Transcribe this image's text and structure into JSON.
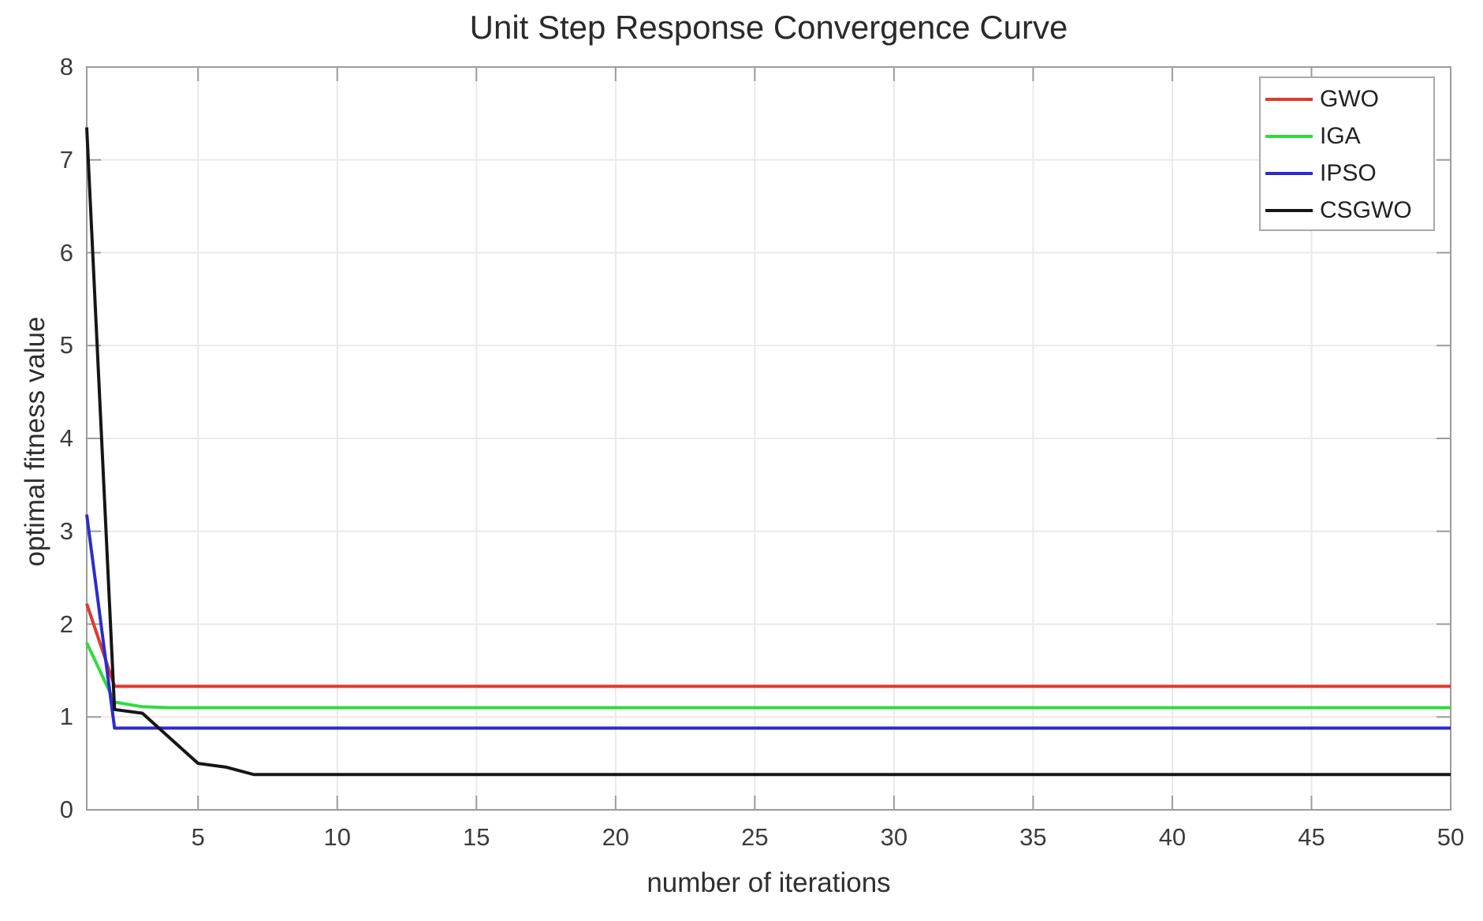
{
  "colors": {
    "background": "#ffffff",
    "grid": "#eaeaea",
    "axis_box": "#9c9c9c",
    "tick": "#9c9c9c",
    "tick_label": "#3c3c3c",
    "title": "#2a2a2a",
    "legend_border": "#a9a9a9"
  },
  "chart_data": {
    "type": "line",
    "title": "Unit Step Response Convergence Curve",
    "xlabel": "number of iterations",
    "ylabel": "optimal fitness value",
    "xlim": [
      1,
      50
    ],
    "ylim": [
      0,
      8
    ],
    "x_ticks": [
      5,
      10,
      15,
      20,
      25,
      30,
      35,
      40,
      45,
      50
    ],
    "y_ticks": [
      0,
      1,
      2,
      3,
      4,
      5,
      6,
      7,
      8
    ],
    "grid": true,
    "legend_position": "top-right",
    "x": [
      1,
      2,
      3,
      4,
      5,
      6,
      7,
      8,
      9,
      10,
      11,
      12,
      13,
      14,
      15,
      16,
      17,
      18,
      19,
      20,
      21,
      22,
      23,
      24,
      25,
      26,
      27,
      28,
      29,
      30,
      31,
      32,
      33,
      34,
      35,
      36,
      37,
      38,
      39,
      40,
      41,
      42,
      43,
      44,
      45,
      46,
      47,
      48,
      49,
      50
    ],
    "series": [
      {
        "name": "GWO",
        "color": "#e0392e",
        "values": [
          2.22,
          1.33,
          1.33,
          1.33,
          1.33,
          1.33,
          1.33,
          1.33,
          1.33,
          1.33,
          1.33,
          1.33,
          1.33,
          1.33,
          1.33,
          1.33,
          1.33,
          1.33,
          1.33,
          1.33,
          1.33,
          1.33,
          1.33,
          1.33,
          1.33,
          1.33,
          1.33,
          1.33,
          1.33,
          1.33,
          1.33,
          1.33,
          1.33,
          1.33,
          1.33,
          1.33,
          1.33,
          1.33,
          1.33,
          1.33,
          1.33,
          1.33,
          1.33,
          1.33,
          1.33,
          1.33,
          1.33,
          1.33,
          1.33,
          1.33
        ]
      },
      {
        "name": "IGA",
        "color": "#2edc3c",
        "values": [
          1.8,
          1.16,
          1.11,
          1.1,
          1.1,
          1.1,
          1.1,
          1.1,
          1.1,
          1.1,
          1.1,
          1.1,
          1.1,
          1.1,
          1.1,
          1.1,
          1.1,
          1.1,
          1.1,
          1.1,
          1.1,
          1.1,
          1.1,
          1.1,
          1.1,
          1.1,
          1.1,
          1.1,
          1.1,
          1.1,
          1.1,
          1.1,
          1.1,
          1.1,
          1.1,
          1.1,
          1.1,
          1.1,
          1.1,
          1.1,
          1.1,
          1.1,
          1.1,
          1.1,
          1.1,
          1.1,
          1.1,
          1.1,
          1.1,
          1.1
        ]
      },
      {
        "name": "IPSO",
        "color": "#2c2ccc",
        "values": [
          3.18,
          0.88,
          0.88,
          0.88,
          0.88,
          0.88,
          0.88,
          0.88,
          0.88,
          0.88,
          0.88,
          0.88,
          0.88,
          0.88,
          0.88,
          0.88,
          0.88,
          0.88,
          0.88,
          0.88,
          0.88,
          0.88,
          0.88,
          0.88,
          0.88,
          0.88,
          0.88,
          0.88,
          0.88,
          0.88,
          0.88,
          0.88,
          0.88,
          0.88,
          0.88,
          0.88,
          0.88,
          0.88,
          0.88,
          0.88,
          0.88,
          0.88,
          0.88,
          0.88,
          0.88,
          0.88,
          0.88,
          0.88,
          0.88,
          0.88
        ]
      },
      {
        "name": "CSGWO",
        "color": "#161616",
        "values": [
          7.35,
          1.08,
          1.04,
          0.77,
          0.5,
          0.46,
          0.38,
          0.38,
          0.38,
          0.38,
          0.38,
          0.38,
          0.38,
          0.38,
          0.38,
          0.38,
          0.38,
          0.38,
          0.38,
          0.38,
          0.38,
          0.38,
          0.38,
          0.38,
          0.38,
          0.38,
          0.38,
          0.38,
          0.38,
          0.38,
          0.38,
          0.38,
          0.38,
          0.38,
          0.38,
          0.38,
          0.38,
          0.38,
          0.38,
          0.38,
          0.38,
          0.38,
          0.38,
          0.38,
          0.38,
          0.38,
          0.38,
          0.38,
          0.38,
          0.38
        ]
      }
    ]
  }
}
